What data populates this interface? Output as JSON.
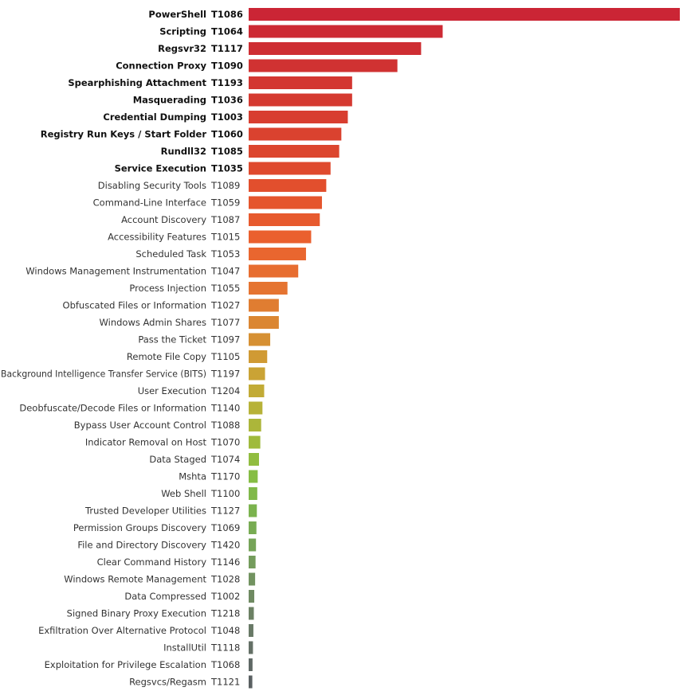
{
  "chart_data": {
    "type": "bar",
    "orientation": "horizontal",
    "grid": false,
    "legend": "none",
    "xlim": [
      0,
      100
    ],
    "categories": [
      {
        "name": "PowerShell",
        "id": "T1086",
        "value": 100,
        "bold": true,
        "color": "#cb2535"
      },
      {
        "name": "Scripting",
        "id": "T1064",
        "value": 45,
        "bold": true,
        "color": "#cd2a34"
      },
      {
        "name": "Regsvr32",
        "id": "T1117",
        "value": 40,
        "bold": true,
        "color": "#ce2e33"
      },
      {
        "name": "Connection Proxy",
        "id": "T1090",
        "value": 34.5,
        "bold": true,
        "color": "#d03232"
      },
      {
        "name": "Spearphishing Attachment",
        "id": "T1193",
        "value": 24,
        "bold": true,
        "color": "#d33631"
      },
      {
        "name": "Masquerading",
        "id": "T1036",
        "value": 24,
        "bold": true,
        "color": "#d53a31"
      },
      {
        "name": "Credential Dumping",
        "id": "T1003",
        "value": 23,
        "bold": true,
        "color": "#d83e30"
      },
      {
        "name": "Registry Run Keys / Start Folder",
        "id": "T1060",
        "value": 21.5,
        "bold": true,
        "color": "#da422f"
      },
      {
        "name": "Rundll32",
        "id": "T1085",
        "value": 21,
        "bold": true,
        "color": "#dc462e"
      },
      {
        "name": "Service Execution",
        "id": "T1035",
        "value": 19,
        "bold": true,
        "color": "#df4a2e"
      },
      {
        "name": "Disabling Security Tools",
        "id": "T1089",
        "value": 18,
        "bold": false,
        "color": "#e24f2d"
      },
      {
        "name": "Command-Line Interface",
        "id": "T1059",
        "value": 17,
        "bold": false,
        "color": "#e5552d"
      },
      {
        "name": "Account Discovery",
        "id": "T1087",
        "value": 16.5,
        "bold": false,
        "color": "#e75a2e"
      },
      {
        "name": "Accessibility Features",
        "id": "T1015",
        "value": 14.5,
        "bold": false,
        "color": "#ea602e"
      },
      {
        "name": "Scheduled Task",
        "id": "T1053",
        "value": 13.3,
        "bold": false,
        "color": "#e9662f"
      },
      {
        "name": "Windows Management Instrumentation",
        "id": "T1047",
        "value": 11.5,
        "bold": false,
        "color": "#e76d30"
      },
      {
        "name": "Process Injection",
        "id": "T1055",
        "value": 9,
        "bold": false,
        "color": "#e57431"
      },
      {
        "name": "Obfuscated Files or Information",
        "id": "T1027",
        "value": 7,
        "bold": false,
        "color": "#e07d31"
      },
      {
        "name": "Windows Admin Shares",
        "id": "T1077",
        "value": 7,
        "bold": false,
        "color": "#db8632"
      },
      {
        "name": "Pass the Ticket",
        "id": "T1097",
        "value": 5,
        "bold": false,
        "color": "#d69033"
      },
      {
        "name": "Remote File Copy",
        "id": "T1105",
        "value": 4.3,
        "bold": false,
        "color": "#d09a34"
      },
      {
        "name": "Background Intelligence Transfer Service (BITS)",
        "id": "T1197",
        "value": 3.8,
        "bold": false,
        "color": "#caa335"
      },
      {
        "name": "User Execution",
        "id": "T1204",
        "value": 3.6,
        "bold": false,
        "color": "#c2ab36"
      },
      {
        "name": "Deobfuscate/Decode Files or Information",
        "id": "T1140",
        "value": 3.2,
        "bold": false,
        "color": "#b7b238"
      },
      {
        "name": "Bypass User Account Control",
        "id": "T1088",
        "value": 2.9,
        "bold": false,
        "color": "#acb63a"
      },
      {
        "name": "Indicator Removal on Host",
        "id": "T1070",
        "value": 2.7,
        "bold": false,
        "color": "#9fba3c"
      },
      {
        "name": "Data Staged",
        "id": "T1074",
        "value": 2.4,
        "bold": false,
        "color": "#91bd40"
      },
      {
        "name": "Mshta",
        "id": "T1170",
        "value": 2.1,
        "bold": false,
        "color": "#86bd44"
      },
      {
        "name": "Web Shell",
        "id": "T1100",
        "value": 2,
        "bold": false,
        "color": "#80b949"
      },
      {
        "name": "Trusted Developer Utilities",
        "id": "T1127",
        "value": 1.9,
        "bold": false,
        "color": "#7bb34e"
      },
      {
        "name": "Permission Groups Discovery",
        "id": "T1069",
        "value": 1.8,
        "bold": false,
        "color": "#78ac53"
      },
      {
        "name": "File and Directory Discovery",
        "id": "T1420",
        "value": 1.7,
        "bold": false,
        "color": "#76a458"
      },
      {
        "name": "Clear Command History",
        "id": "T1146",
        "value": 1.6,
        "bold": false,
        "color": "#749c5c"
      },
      {
        "name": "Windows Remote Management",
        "id": "T1028",
        "value": 1.5,
        "bold": false,
        "color": "#729360"
      },
      {
        "name": "Data Compressed",
        "id": "T1002",
        "value": 1.3,
        "bold": false,
        "color": "#6f8a62"
      },
      {
        "name": "Signed Binary Proxy Execution",
        "id": "T1218",
        "value": 1.2,
        "bold": false,
        "color": "#6c8164"
      },
      {
        "name": "Exfiltration Over Alternative Protocol",
        "id": "T1048",
        "value": 1.1,
        "bold": false,
        "color": "#687966"
      },
      {
        "name": "InstallUtil",
        "id": "T1118",
        "value": 1,
        "bold": false,
        "color": "#647066"
      },
      {
        "name": "Exploitation for Privilege Escalation",
        "id": "T1068",
        "value": 0.9,
        "bold": false,
        "color": "#5f6865"
      },
      {
        "name": "Regsvcs/Regasm",
        "id": "T1121",
        "value": 0.85,
        "bold": false,
        "color": "#5a6062"
      }
    ]
  }
}
